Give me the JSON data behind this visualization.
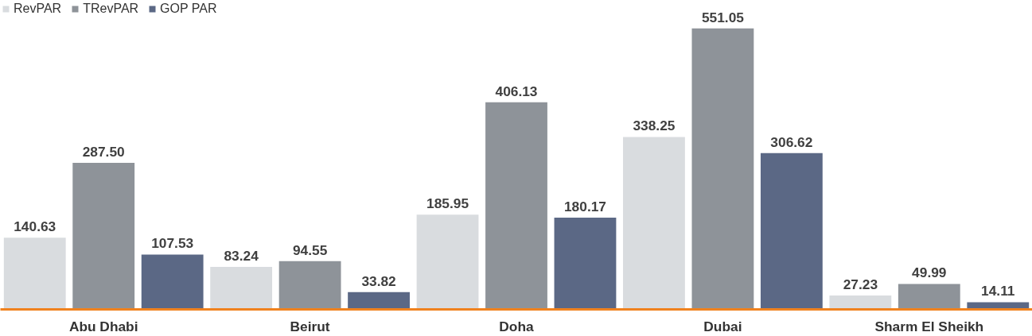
{
  "chart_data": {
    "type": "bar",
    "categories": [
      "Abu Dhabi",
      "Beirut",
      "Doha",
      "Dubai",
      "Sharm El Sheikh"
    ],
    "series": [
      {
        "name": "RevPAR",
        "color": "#d9dcdf",
        "values": [
          140.63,
          83.24,
          185.95,
          338.25,
          27.23
        ],
        "value_labels": [
          "140.63",
          "83.24",
          "185.95",
          "338.25",
          "27.23"
        ]
      },
      {
        "name": "TRevPAR",
        "color": "#8e9399",
        "values": [
          287.5,
          94.55,
          406.13,
          551.05,
          49.99
        ],
        "value_labels": [
          "287.50",
          "94.55",
          "406.13",
          "551.05",
          "49.99"
        ]
      },
      {
        "name": "GOP PAR",
        "color": "#5b6885",
        "values": [
          107.53,
          33.82,
          180.17,
          306.62,
          14.11
        ],
        "value_labels": [
          "107.53",
          "33.82",
          "180.17",
          "306.62",
          "14.11"
        ]
      }
    ],
    "legend": "top left",
    "grid": false
  }
}
